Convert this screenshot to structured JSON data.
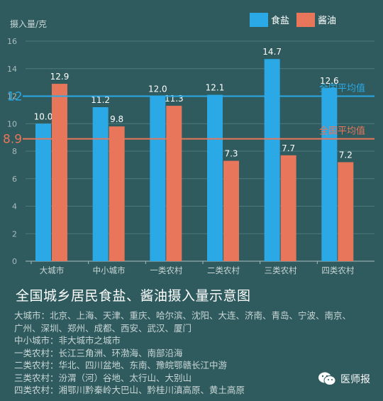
{
  "chart_data": {
    "type": "bar",
    "ylabel": "摄入量/克",
    "ylim": [
      0,
      16
    ],
    "yticks": [
      0,
      2,
      4,
      6,
      8,
      10,
      12,
      14,
      16
    ],
    "categories": [
      "大城市",
      "中小城市",
      "一类农村",
      "二类农村",
      "三类农村",
      "四类农村"
    ],
    "series": [
      {
        "name": "食盐",
        "color": "#2aa9e6",
        "values": [
          10.0,
          11.2,
          12.0,
          12.1,
          14.7,
          12.6
        ]
      },
      {
        "name": "酱油",
        "color": "#e8765a",
        "values": [
          12.9,
          9.8,
          11.3,
          7.3,
          7.7,
          7.2
        ]
      }
    ],
    "value_labels": [
      [
        "10.0",
        "11.2",
        "12.0",
        "12.1",
        "14.7",
        "12.6"
      ],
      [
        "12.9",
        "9.8",
        "11.3",
        "7.3",
        "7.7",
        "7.2"
      ]
    ],
    "reference_lines": [
      {
        "value": 12,
        "label": "全国平均值",
        "axis_label": "12",
        "color": "#2aa9e6"
      },
      {
        "value": 8.9,
        "label": "全国平均值",
        "axis_label": "8.9",
        "color": "#e8765a"
      }
    ],
    "legend_position": "top-right",
    "grid": true
  },
  "title": "全国城乡居民食盐、酱油摄入量示意图",
  "notes": [
    "大城市：北京、上海、天津、重庆、哈尔滨、沈阳、大连、济南、青岛、宁波、南京、",
    "广州、深圳、郑州、成都、西安、武汉、厦门",
    "中小城市：非大城市之城市",
    "一类农村：长江三角洲、环渤海、南部沿海",
    "二类农村：华北、四川盆地、东南、豫皖鄂赣长江中游",
    "三类农村：汾渭（河）谷地、太行山、大别山",
    "四类农村：湘鄂川黔秦岭大巴山、黔桂川滇高原、黄土高原"
  ],
  "watermark": "医师报"
}
